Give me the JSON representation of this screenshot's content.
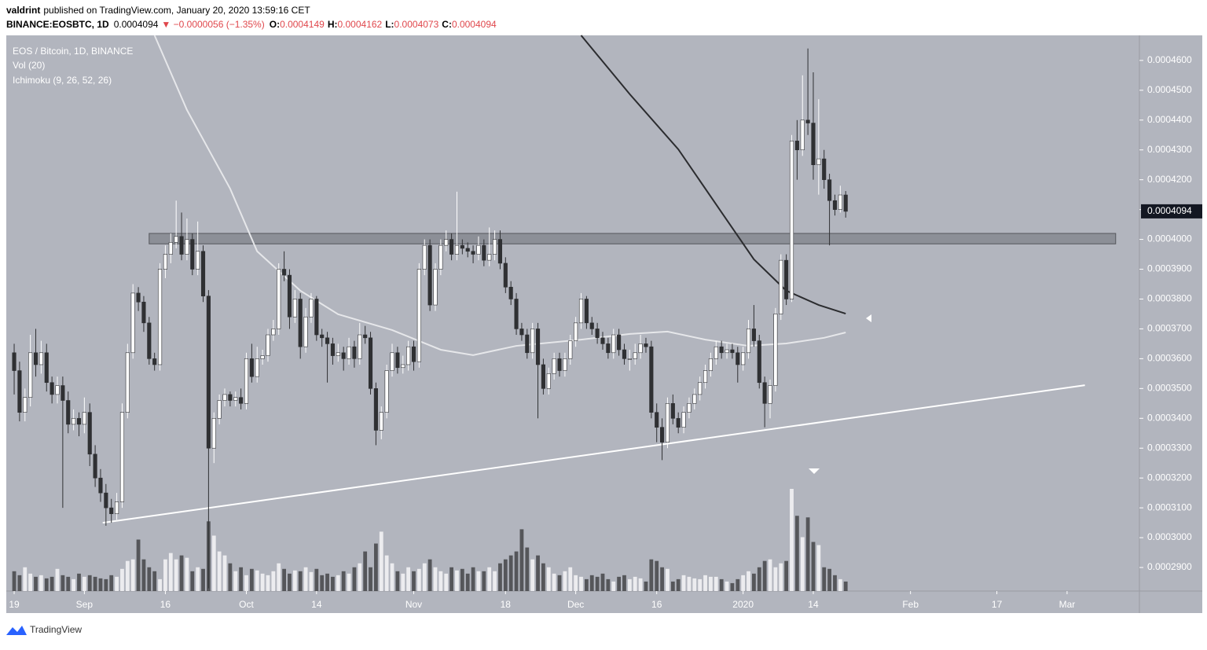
{
  "header": {
    "author": "valdrint",
    "published": "published on TradingView.com, January 20, 2020 13:59:16 CET",
    "symbol": "BINANCE:EOSBTC, 1D",
    "change": "▼ −0.0000056 (−1.35%)",
    "o_label": "O:",
    "h_label": "H:",
    "l_label": "L:",
    "c_label": "C:"
  },
  "chart_data": {
    "type": "candlestick",
    "legend": [
      "EOS / Bitcoin, 1D, BINANCE",
      "Vol (20)",
      "Ichimoku (9, 26, 52, 26)"
    ],
    "up_color": "#ffffff",
    "down_color": "#2f3033",
    "background": "#b2b5be",
    "grid": false,
    "ylim": [
      0.0002821,
      0.0004684
    ],
    "yticks": [
      {
        "value": 0.00029,
        "label": "0.0002900"
      },
      {
        "value": 0.0003,
        "label": "0.0003000"
      },
      {
        "value": 0.00031,
        "label": "0.0003100"
      },
      {
        "value": 0.00032,
        "label": "0.0003200"
      },
      {
        "value": 0.00033,
        "label": "0.0003300"
      },
      {
        "value": 0.00034,
        "label": "0.0003400"
      },
      {
        "value": 0.00035,
        "label": "0.0003500"
      },
      {
        "value": 0.00036,
        "label": "0.0003600"
      },
      {
        "value": 0.00037,
        "label": "0.0003700"
      },
      {
        "value": 0.00038,
        "label": "0.0003800"
      },
      {
        "value": 0.00039,
        "label": "0.0003900"
      },
      {
        "value": 0.0004,
        "label": "0.0004000"
      },
      {
        "value": 0.00041,
        "label": "0.0004100"
      },
      {
        "value": 0.00042,
        "label": "0.0004200"
      },
      {
        "value": 0.00043,
        "label": "0.0004300"
      },
      {
        "value": 0.00044,
        "label": "0.0004400"
      },
      {
        "value": 0.00045,
        "label": "0.0004500"
      },
      {
        "value": 0.00046,
        "label": "0.0004600"
      }
    ],
    "xlim": [
      -1.46,
      208.4
    ],
    "xticks": [
      {
        "value": 0,
        "label": "19"
      },
      {
        "value": 13,
        "label": "Sep"
      },
      {
        "value": 28,
        "label": "16"
      },
      {
        "value": 43,
        "label": "Oct"
      },
      {
        "value": 56,
        "label": "14"
      },
      {
        "value": 74,
        "label": "Nov"
      },
      {
        "value": 91,
        "label": "18"
      },
      {
        "value": 104,
        "label": "Dec"
      },
      {
        "value": 119,
        "label": "16"
      },
      {
        "value": 135,
        "label": "2020"
      },
      {
        "value": 148,
        "label": "14"
      },
      {
        "value": 166,
        "label": "Feb"
      },
      {
        "value": 182,
        "label": "17"
      },
      {
        "value": 195,
        "label": "Mar"
      }
    ],
    "ohlc": [
      [
        0.000362,
        0.000365,
        0.000348,
        0.000356
      ],
      [
        0.000356,
        0.000359,
        0.000339,
        0.000342
      ],
      [
        0.000342,
        0.00035,
        0.000339,
        0.000347
      ],
      [
        0.000347,
        0.000368,
        0.000344,
        0.000362
      ],
      [
        0.000362,
        0.00037,
        0.000354,
        0.000358
      ],
      [
        0.000358,
        0.000366,
        0.000355,
        0.000362
      ],
      [
        0.000362,
        0.000365,
        0.000349,
        0.000352
      ],
      [
        0.000352,
        0.000354,
        0.000345,
        0.000348
      ],
      [
        0.000348,
        0.000354,
        0.000345,
        0.000351
      ],
      [
        0.000351,
        0.000354,
        0.00031,
        0.000346
      ],
      [
        0.000346,
        0.000349,
        0.000335,
        0.000338
      ],
      [
        0.000338,
        0.000343,
        0.000336,
        0.00034
      ],
      [
        0.00034,
        0.000342,
        0.000334,
        0.000338
      ],
      [
        0.000338,
        0.000347,
        0.000335,
        0.000342
      ],
      [
        0.000342,
        0.000345,
        0.000324,
        0.000328
      ],
      [
        0.000328,
        0.000331,
        0.000317,
        0.00032
      ],
      [
        0.00032,
        0.000323,
        0.000312,
        0.000315
      ],
      [
        0.000315,
        0.000318,
        0.000304,
        0.00031
      ],
      [
        0.00031,
        0.000313,
        0.000305,
        0.000308
      ],
      [
        0.000308,
        0.000315,
        0.000306,
        0.000312
      ],
      [
        0.000312,
        0.000345,
        0.00031,
        0.000342
      ],
      [
        0.000342,
        0.000365,
        0.00034,
        0.000362
      ],
      [
        0.000362,
        0.000385,
        0.00036,
        0.000382
      ],
      [
        0.000382,
        0.000384,
        0.000376,
        0.000379
      ],
      [
        0.000379,
        0.000381,
        0.000369,
        0.000372
      ],
      [
        0.000372,
        0.000374,
        0.000358,
        0.00036
      ],
      [
        0.00036,
        0.000362,
        0.000356,
        0.000358
      ],
      [
        0.000358,
        0.000392,
        0.000356,
        0.00039
      ],
      [
        0.00039,
        0.000398,
        0.000387,
        0.000395
      ],
      [
        0.000395,
        0.000402,
        0.000392,
        0.000399
      ],
      [
        0.000399,
        0.000413,
        0.000397,
        0.000401
      ],
      [
        0.000401,
        0.000409,
        0.000393,
        0.000395
      ],
      [
        0.000395,
        0.000407,
        0.000393,
        0.0004
      ],
      [
        0.0004,
        0.000402,
        0.000388,
        0.00039
      ],
      [
        0.00039,
        0.000406,
        0.000388,
        0.000396
      ],
      [
        0.000396,
        0.000398,
        0.000379,
        0.000381
      ],
      [
        0.000381,
        0.000383,
        0.000283,
        0.00033
      ],
      [
        0.00033,
        0.000342,
        0.000325,
        0.00034
      ],
      [
        0.00034,
        0.000348,
        0.000338,
        0.000346
      ],
      [
        0.000346,
        0.00035,
        0.000344,
        0.000348
      ],
      [
        0.000348,
        0.000349,
        0.000344,
        0.000346
      ],
      [
        0.000346,
        0.000349,
        0.000344,
        0.000347
      ],
      [
        0.000347,
        0.00035,
        0.000343,
        0.000345
      ],
      [
        0.000345,
        0.000362,
        0.000343,
        0.00036
      ],
      [
        0.00036,
        0.000365,
        0.000352,
        0.000354
      ],
      [
        0.000354,
        0.000364,
        0.000352,
        0.00036
      ],
      [
        0.00036,
        0.000363,
        0.000358,
        0.000361
      ],
      [
        0.000361,
        0.00037,
        0.000359,
        0.000368
      ],
      [
        0.000368,
        0.000373,
        0.000366,
        0.00037
      ],
      [
        0.00037,
        0.000392,
        0.000368,
        0.00039
      ],
      [
        0.00039,
        0.000396,
        0.000386,
        0.000388
      ],
      [
        0.000388,
        0.00039,
        0.00037,
        0.000374
      ],
      [
        0.000374,
        0.000383,
        0.000372,
        0.00038
      ],
      [
        0.00038,
        0.000382,
        0.00036,
        0.000364
      ],
      [
        0.000364,
        0.000377,
        0.000362,
        0.000374
      ],
      [
        0.000374,
        0.000382,
        0.000372,
        0.00038
      ],
      [
        0.00038,
        0.000381,
        0.000366,
        0.000368
      ],
      [
        0.000368,
        0.00037,
        0.000364,
        0.000367
      ],
      [
        0.000367,
        0.000369,
        0.000352,
        0.000365
      ],
      [
        0.000365,
        0.000367,
        0.000358,
        0.000361
      ],
      [
        0.000361,
        0.000365,
        0.000359,
        0.000362
      ],
      [
        0.000362,
        0.000364,
        0.000356,
        0.00036
      ],
      [
        0.00036,
        0.000367,
        0.000358,
        0.000364
      ],
      [
        0.000364,
        0.000366,
        0.000357,
        0.00036
      ],
      [
        0.00036,
        0.000372,
        0.000358,
        0.000368
      ],
      [
        0.000368,
        0.000371,
        0.000365,
        0.000367
      ],
      [
        0.000367,
        0.000369,
        0.000348,
        0.00035
      ],
      [
        0.00035,
        0.000352,
        0.000331,
        0.000336
      ],
      [
        0.000336,
        0.000344,
        0.000333,
        0.000342
      ],
      [
        0.000342,
        0.000358,
        0.00034,
        0.000356
      ],
      [
        0.000356,
        0.000365,
        0.000354,
        0.000362
      ],
      [
        0.000362,
        0.000364,
        0.000355,
        0.000357
      ],
      [
        0.000357,
        0.000361,
        0.000355,
        0.000358
      ],
      [
        0.000358,
        0.000366,
        0.000356,
        0.000364
      ],
      [
        0.000364,
        0.000366,
        0.000356,
        0.000359
      ],
      [
        0.000359,
        0.000392,
        0.000357,
        0.00039
      ],
      [
        0.00039,
        0.0004,
        0.000388,
        0.000398
      ],
      [
        0.000398,
        0.0004,
        0.000376,
        0.000378
      ],
      [
        0.000378,
        0.000392,
        0.000376,
        0.00039
      ],
      [
        0.00039,
        0.0004,
        0.000388,
        0.000398
      ],
      [
        0.000398,
        0.000403,
        0.000396,
        0.0004
      ],
      [
        0.0004,
        0.000402,
        0.000393,
        0.000395
      ],
      [
        0.000395,
        0.000416,
        0.000393,
        0.000398
      ],
      [
        0.000398,
        0.0004,
        0.000395,
        0.000397
      ],
      [
        0.000397,
        0.000399,
        0.000394,
        0.000396
      ],
      [
        0.000396,
        0.000398,
        0.000392,
        0.000395
      ],
      [
        0.000395,
        0.000401,
        0.000393,
        0.000398
      ],
      [
        0.000398,
        0.0004,
        0.000391,
        0.000393
      ],
      [
        0.000393,
        0.000404,
        0.000391,
        0.000395
      ],
      [
        0.000395,
        0.000403,
        0.000393,
        0.0004
      ],
      [
        0.0004,
        0.000403,
        0.00039,
        0.000392
      ],
      [
        0.000392,
        0.000394,
        0.000382,
        0.000384
      ],
      [
        0.000384,
        0.000386,
        0.000378,
        0.00038
      ],
      [
        0.00038,
        0.000382,
        0.000368,
        0.00037
      ],
      [
        0.00037,
        0.000372,
        0.000366,
        0.000368
      ],
      [
        0.000368,
        0.00037,
        0.00036,
        0.000362
      ],
      [
        0.000362,
        0.000372,
        0.00036,
        0.00037
      ],
      [
        0.00037,
        0.000372,
        0.00034,
        0.000358
      ],
      [
        0.000358,
        0.00036,
        0.000348,
        0.00035
      ],
      [
        0.00035,
        0.000357,
        0.000348,
        0.000355
      ],
      [
        0.000355,
        0.000362,
        0.000353,
        0.00036
      ],
      [
        0.00036,
        0.000362,
        0.000354,
        0.000356
      ],
      [
        0.000356,
        0.000362,
        0.000354,
        0.00036
      ],
      [
        0.00036,
        0.000368,
        0.000358,
        0.000366
      ],
      [
        0.000366,
        0.000374,
        0.000364,
        0.000372
      ],
      [
        0.000372,
        0.000382,
        0.00037,
        0.00038
      ],
      [
        0.00038,
        0.000381,
        0.00037,
        0.000372
      ],
      [
        0.000372,
        0.000374,
        0.000368,
        0.00037
      ],
      [
        0.00037,
        0.000372,
        0.000365,
        0.000367
      ],
      [
        0.000367,
        0.000369,
        0.000363,
        0.000365
      ],
      [
        0.000365,
        0.000367,
        0.00036,
        0.000362
      ],
      [
        0.000362,
        0.00037,
        0.00036,
        0.000368
      ],
      [
        0.000368,
        0.00037,
        0.000361,
        0.000363
      ],
      [
        0.000363,
        0.000365,
        0.000358,
        0.00036
      ],
      [
        0.00036,
        0.000363,
        0.000356,
        0.00036
      ],
      [
        0.00036,
        0.000365,
        0.000358,
        0.000362
      ],
      [
        0.000362,
        0.000368,
        0.00036,
        0.000365
      ],
      [
        0.000365,
        0.000367,
        0.000362,
        0.000364
      ],
      [
        0.000364,
        0.000366,
        0.00034,
        0.000342
      ],
      [
        0.000342,
        0.000345,
        0.000332,
        0.000337
      ],
      [
        0.000337,
        0.00034,
        0.000326,
        0.000332
      ],
      [
        0.000332,
        0.000347,
        0.00033,
        0.000345
      ],
      [
        0.000345,
        0.000348,
        0.000338,
        0.00034
      ],
      [
        0.00034,
        0.000342,
        0.000335,
        0.000337
      ],
      [
        0.000337,
        0.000344,
        0.000335,
        0.000342
      ],
      [
        0.000342,
        0.000347,
        0.00034,
        0.000345
      ],
      [
        0.000345,
        0.00035,
        0.000343,
        0.000348
      ],
      [
        0.000348,
        0.000354,
        0.000346,
        0.000352
      ],
      [
        0.000352,
        0.000358,
        0.00035,
        0.000356
      ],
      [
        0.000356,
        0.000362,
        0.000354,
        0.00036
      ],
      [
        0.00036,
        0.000366,
        0.000358,
        0.000364
      ],
      [
        0.000364,
        0.000366,
        0.00036,
        0.000362
      ],
      [
        0.000362,
        0.000365,
        0.00036,
        0.000363
      ],
      [
        0.000363,
        0.000365,
        0.00036,
        0.000362
      ],
      [
        0.000362,
        0.000364,
        0.000352,
        0.000358
      ],
      [
        0.000358,
        0.000364,
        0.000356,
        0.000362
      ],
      [
        0.000362,
        0.000373,
        0.00036,
        0.00037
      ],
      [
        0.00037,
        0.000378,
        0.000364,
        0.000366
      ],
      [
        0.000366,
        0.000368,
        0.00035,
        0.000352
      ],
      [
        0.000352,
        0.000354,
        0.000337,
        0.000345
      ],
      [
        0.000345,
        0.000353,
        0.00034,
        0.000351
      ],
      [
        0.000351,
        0.000377,
        0.000349,
        0.000375
      ],
      [
        0.000375,
        0.000395,
        0.000373,
        0.000393
      ],
      [
        0.000393,
        0.000395,
        0.000378,
        0.00038
      ],
      [
        0.00038,
        0.000435,
        0.000379,
        0.000433
      ],
      [
        0.000433,
        0.00044,
        0.00042,
        0.00043
      ],
      [
        0.00043,
        0.000455,
        0.000428,
        0.00044
      ],
      [
        0.00044,
        0.000464,
        0.000435,
        0.000439
      ],
      [
        0.000439,
        0.000456,
        0.00042,
        0.000425
      ],
      [
        0.000425,
        0.000447,
        0.000415,
        0.000427
      ],
      [
        0.000427,
        0.00043,
        0.000417,
        0.00042
      ],
      [
        0.00042,
        0.000422,
        0.000398,
        0.000413
      ],
      [
        0.000413,
        0.000415,
        0.000408,
        0.00041
      ],
      [
        0.00041,
        0.000418,
        0.000409,
        0.0004149
      ],
      [
        0.0004149,
        0.0004162,
        0.0004073,
        0.0004094
      ]
    ],
    "volume": [
      25,
      20,
      30,
      22,
      18,
      20,
      16,
      18,
      28,
      20,
      18,
      15,
      22,
      18,
      20,
      18,
      16,
      15,
      20,
      18,
      28,
      38,
      40,
      65,
      40,
      30,
      25,
      15,
      40,
      48,
      40,
      45,
      42,
      25,
      30,
      28,
      88,
      70,
      50,
      45,
      35,
      25,
      30,
      20,
      28,
      26,
      22,
      20,
      25,
      35,
      28,
      22,
      26,
      25,
      30,
      24,
      28,
      20,
      22,
      18,
      20,
      25,
      22,
      30,
      35,
      50,
      30,
      60,
      75,
      45,
      35,
      25,
      22,
      30,
      25,
      28,
      35,
      40,
      30,
      25,
      22,
      30,
      26,
      28,
      22,
      30,
      25,
      25,
      30,
      25,
      35,
      40,
      45,
      50,
      78,
      55,
      40,
      45,
      35,
      30,
      22,
      20,
      25,
      30,
      20,
      18,
      15,
      20,
      18,
      22,
      15,
      12,
      18,
      20,
      15,
      18,
      16,
      12,
      40,
      38,
      30,
      28,
      12,
      15,
      20,
      18,
      16,
      15,
      20,
      18,
      18,
      15,
      12,
      10,
      15,
      20,
      25,
      22,
      30,
      38,
      40,
      30,
      35,
      38,
      129,
      95,
      68,
      93,
      62,
      58,
      30,
      28,
      20,
      15,
      12
    ],
    "lines": [
      {
        "color": "#2b2c2f",
        "x": [
          105,
          114,
          123,
          131,
          137,
          143,
          149,
          154
        ],
        "values": [
          0.0004684,
          0.0004487,
          0.0004302,
          0.0004091,
          0.0003933,
          0.0003828,
          0.000378,
          0.0003751
        ]
      },
      {
        "color": "#e6e7ea",
        "x": [
          26,
          32,
          40,
          45,
          53,
          60,
          70,
          79,
          85,
          93,
          105,
          114,
          121,
          128,
          136,
          143,
          150,
          154
        ],
        "values": [
          0.0004684,
          0.0004434,
          0.000417,
          0.000396,
          0.0003828,
          0.0003749,
          0.0003696,
          0.000363,
          0.0003612,
          0.0003643,
          0.0003664,
          0.0003683,
          0.0003691,
          0.0003664,
          0.0003643,
          0.0003651,
          0.000367,
          0.0003688
        ]
      },
      {
        "color": "#ffffff",
        "x": [
          16.4,
          198.3
        ],
        "values": [
          0.000305,
          0.0003511
        ]
      }
    ],
    "zone": {
      "x": [
        25,
        204
      ],
      "values": [
        0.0003985,
        0.000402
      ]
    }
  },
  "footer": {
    "brand": "TradingView"
  }
}
